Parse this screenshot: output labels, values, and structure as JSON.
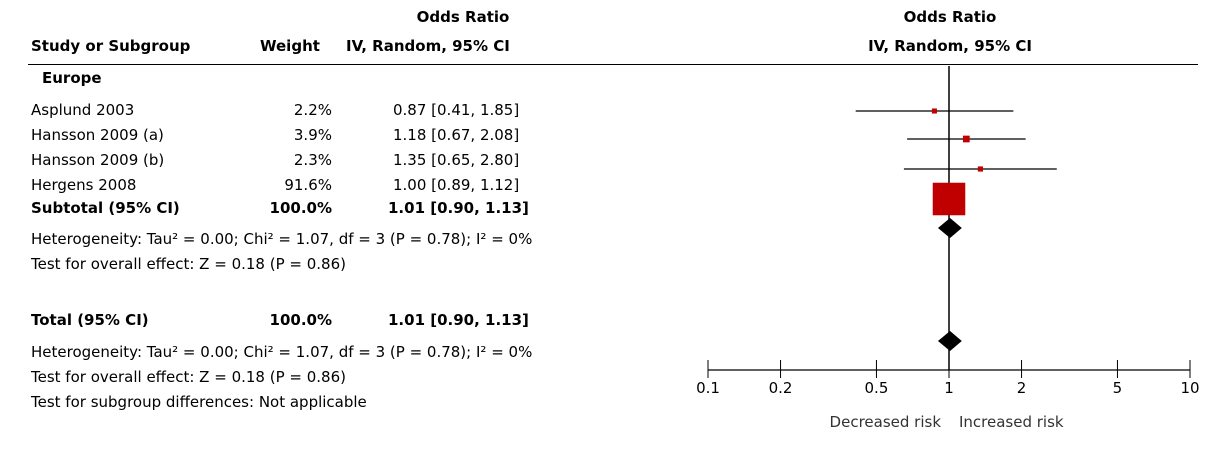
{
  "header": {
    "col_study": "Study or Subgroup",
    "col_weight": "Weight",
    "col_or_top": "Odds Ratio",
    "col_or_bottom": "IV, Random, 95% CI",
    "plot_top": "Odds Ratio",
    "plot_bottom": "IV, Random, 95% CI"
  },
  "subgroup": {
    "name": "Europe",
    "studies": [
      {
        "name": "Asplund 2003",
        "weight": "2.2%",
        "ci_text": "0.87 [0.41, 1.85]"
      },
      {
        "name": "Hansson 2009 (a)",
        "weight": "3.9%",
        "ci_text": "1.18 [0.67, 2.08]"
      },
      {
        "name": "Hansson 2009 (b)",
        "weight": "2.3%",
        "ci_text": "1.35 [0.65, 2.80]"
      },
      {
        "name": "Hergens 2008",
        "weight": "91.6%",
        "ci_text": "1.00 [0.89, 1.12]"
      }
    ],
    "subtotal": {
      "label": "Subtotal (95% CI)",
      "weight": "100.0%",
      "ci_text": "1.01 [0.90, 1.13]"
    },
    "heterogeneity": "Heterogeneity: Tau² = 0.00; Chi² = 1.07, df = 3 (P = 0.78); I² = 0%",
    "overall_effect": "Test for overall effect: Z = 0.18 (P = 0.86)"
  },
  "total": {
    "label": "Total (95% CI)",
    "weight": "100.0%",
    "ci_text": "1.01 [0.90, 1.13]",
    "heterogeneity": "Heterogeneity: Tau² = 0.00; Chi² = 1.07, df = 3 (P = 0.78); I² = 0%",
    "overall_effect": "Test for overall effect: Z = 0.18 (P = 0.86)",
    "subgroup_diff": "Test for subgroup differences: Not applicable"
  },
  "colors": {
    "study_marker": "#c00000",
    "diamond": "#000000",
    "lines": "#000000"
  },
  "chart_data": {
    "type": "scatter",
    "title": "Odds Ratio",
    "subtitle": "IV, Random, 95% CI",
    "x_scale": "log",
    "xlim": [
      0.1,
      10
    ],
    "xticks": [
      0.1,
      0.2,
      0.5,
      1,
      2,
      5,
      10
    ],
    "xtick_labels": [
      "0.1",
      "0.2",
      "0.5",
      "1",
      "2",
      "5",
      "10"
    ],
    "reference_line": 1,
    "favours_left": "Decreased risk",
    "favours_right": "Increased risk",
    "studies": [
      {
        "name": "Asplund 2003",
        "or": 0.87,
        "lo": 0.41,
        "hi": 1.85,
        "weight": 2.2
      },
      {
        "name": "Hansson 2009 (a)",
        "or": 1.18,
        "lo": 0.67,
        "hi": 2.08,
        "weight": 3.9
      },
      {
        "name": "Hansson 2009 (b)",
        "or": 1.35,
        "lo": 0.65,
        "hi": 2.8,
        "weight": 2.3
      },
      {
        "name": "Hergens 2008",
        "or": 1.0,
        "lo": 0.89,
        "hi": 1.12,
        "weight": 91.6
      }
    ],
    "diamonds": [
      {
        "name": "Subtotal (95% CI)",
        "or": 1.01,
        "lo": 0.9,
        "hi": 1.13
      },
      {
        "name": "Total (95% CI)",
        "or": 1.01,
        "lo": 0.9,
        "hi": 1.13
      }
    ]
  }
}
